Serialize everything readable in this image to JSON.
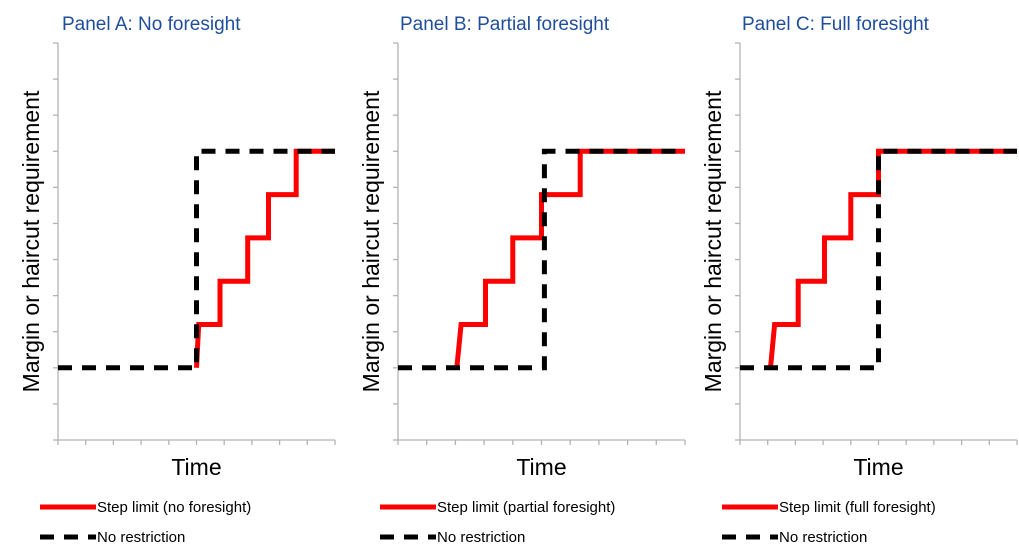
{
  "page_title_fragment": "",
  "colors": {
    "step": "#ff0000",
    "none": "#000000",
    "title": "#1f4e9c",
    "axis": "#b3b3b3"
  },
  "chart_data": [
    {
      "type": "line",
      "title": "Panel A: No foresight",
      "xlabel": "Time",
      "ylabel": "Margin or haircut requirement",
      "xlim": [
        0,
        10
      ],
      "ylim": [
        0,
        11
      ],
      "x_tick_count": 11,
      "y_tick_count": 12,
      "series": [
        {
          "name": "Step limit (no foresight)",
          "style": "solid-red",
          "x": [
            5.0,
            5.08,
            5.08,
            5.85,
            5.85,
            6.85,
            6.85,
            7.6,
            7.6,
            8.6,
            8.6,
            9.1,
            9.1,
            10.0
          ],
          "y": [
            2.0,
            3.2,
            3.2,
            3.2,
            4.4,
            4.4,
            5.6,
            5.6,
            6.8,
            6.8,
            8.0,
            8.0,
            8.0,
            8.0
          ]
        },
        {
          "name": "No restriction",
          "style": "dashed-black",
          "x": [
            0.0,
            5.0,
            5.0,
            10.0
          ],
          "y": [
            2.0,
            2.0,
            8.0,
            8.0
          ]
        }
      ]
    },
    {
      "type": "line",
      "title": "Panel B: Partial foresight",
      "xlabel": "Time",
      "ylabel": "Margin or haircut requirement",
      "xlim": [
        0,
        10
      ],
      "ylim": [
        0,
        11
      ],
      "x_tick_count": 11,
      "y_tick_count": 12,
      "series": [
        {
          "name": "Step limit (partial foresight)",
          "style": "solid-red",
          "x": [
            2.05,
            2.2,
            3.05,
            3.05,
            4.0,
            4.0,
            5.0,
            5.0,
            5.3,
            5.3,
            6.35,
            6.35,
            10.0
          ],
          "y": [
            2.0,
            3.2,
            3.2,
            4.4,
            4.4,
            5.6,
            5.6,
            6.8,
            6.8,
            6.8,
            6.8,
            8.0,
            8.0
          ]
        },
        {
          "name": "No restriction",
          "style": "dashed-black",
          "x": [
            0.0,
            5.1,
            5.1,
            10.0
          ],
          "y": [
            2.0,
            2.0,
            8.0,
            8.0
          ]
        }
      ]
    },
    {
      "type": "line",
      "title": "Panel C: Full foresight",
      "xlabel": "Time",
      "ylabel": "Margin or haircut requirement",
      "xlim": [
        0,
        10
      ],
      "ylim": [
        0,
        11
      ],
      "x_tick_count": 11,
      "y_tick_count": 12,
      "series": [
        {
          "name": "Step limit (full foresight)",
          "style": "solid-red",
          "x": [
            1.1,
            1.25,
            2.1,
            2.1,
            3.05,
            3.05,
            4.0,
            4.0,
            4.9,
            4.9,
            5.0,
            5.0,
            10.0
          ],
          "y": [
            2.0,
            3.2,
            3.2,
            4.4,
            4.4,
            5.6,
            5.6,
            6.8,
            6.8,
            6.8,
            6.8,
            8.0,
            8.0
          ]
        },
        {
          "name": "No restriction",
          "style": "dashed-black",
          "x": [
            0.0,
            5.0,
            5.0,
            10.0
          ],
          "y": [
            2.0,
            2.0,
            8.0,
            8.0
          ]
        }
      ]
    }
  ]
}
